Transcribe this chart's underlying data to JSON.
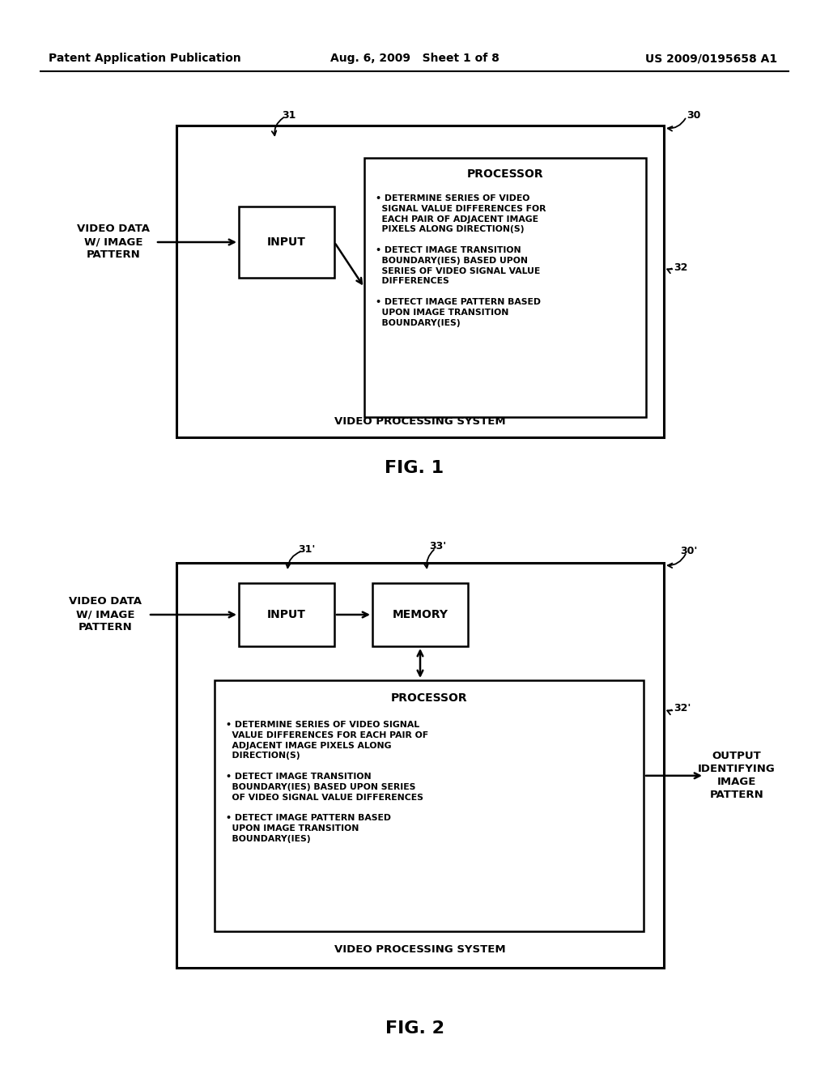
{
  "bg_color": "#ffffff",
  "header_left": "Patent Application Publication",
  "header_mid": "Aug. 6, 2009   Sheet 1 of 8",
  "header_right": "US 2009/0195658 A1",
  "fig1_title": "FIG. 1",
  "fig2_title": "FIG. 2",
  "outer_label": "VIDEO PROCESSING SYSTEM",
  "input_label": "INPUT",
  "memory_label": "MEMORY",
  "processor_label": "PROCESSOR",
  "video_data_label": "VIDEO DATA\nW/ IMAGE\nPATTERN",
  "output_label": "OUTPUT\nIDENTIFYING\nIMAGE\nPATTERN",
  "proc_bullets1": "• DETERMINE SERIES OF VIDEO\n  SIGNAL VALUE DIFFERENCES FOR\n  EACH PAIR OF ADJACENT IMAGE\n  PIXELS ALONG DIRECTION(S)\n\n• DETECT IMAGE TRANSITION\n  BOUNDARY(IES) BASED UPON\n  SERIES OF VIDEO SIGNAL VALUE\n  DIFFERENCES\n\n• DETECT IMAGE PATTERN BASED\n  UPON IMAGE TRANSITION\n  BOUNDARY(IES)",
  "proc_bullets2": "• DETERMINE SERIES OF VIDEO SIGNAL\n  VALUE DIFFERENCES FOR EACH PAIR OF\n  ADJACENT IMAGE PIXELS ALONG\n  DIRECTION(S)\n\n• DETECT IMAGE TRANSITION\n  BOUNDARY(IES) BASED UPON SERIES\n  OF VIDEO SIGNAL VALUE DIFFERENCES\n\n• DETECT IMAGE PATTERN BASED\n  UPON IMAGE TRANSITION\n  BOUNDARY(IES)"
}
